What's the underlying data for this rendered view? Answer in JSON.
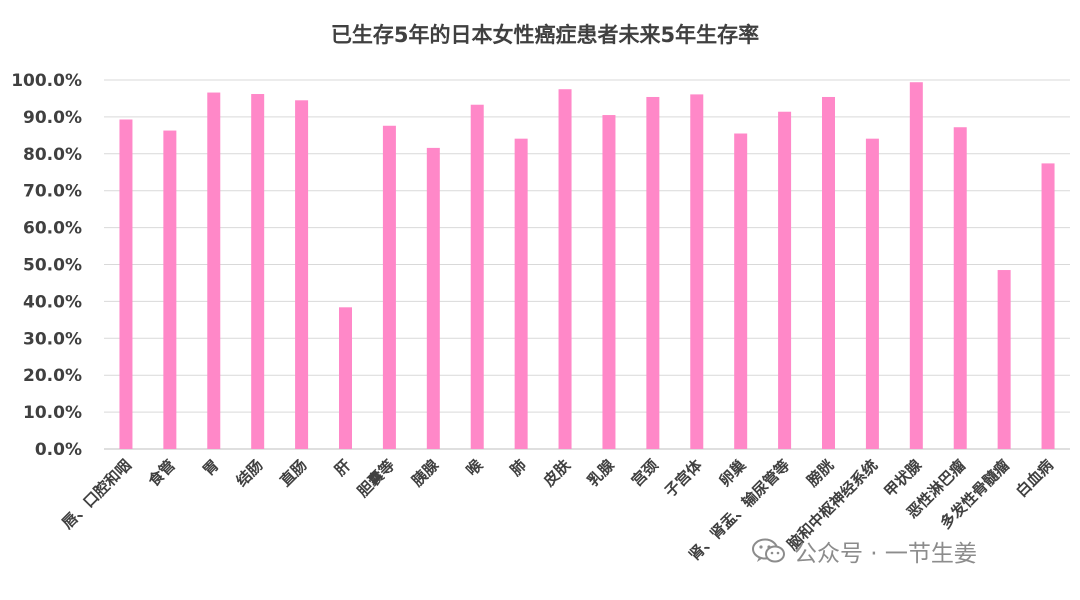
{
  "chart_data": {
    "type": "bar",
    "title": "已生存5年的日本女性癌症患者未来5年生存率",
    "categories": [
      "唇、口腔和咽",
      "食管",
      "胃",
      "结肠",
      "直肠",
      "肝",
      "胆囊等",
      "胰腺",
      "喉",
      "肺",
      "皮肤",
      "乳腺",
      "宫颈",
      "子宫体",
      "卵巢",
      "肾、肾盂、输尿管等",
      "膀胱",
      "脑和中枢神经系统",
      "甲状腺",
      "恶性淋巴瘤",
      "多发性骨髓瘤",
      "白血病"
    ],
    "values": [
      89.3,
      86.3,
      96.6,
      96.2,
      94.5,
      38.4,
      87.6,
      81.6,
      93.3,
      84.1,
      97.5,
      90.5,
      95.4,
      96.1,
      85.5,
      91.4,
      95.4,
      84.1,
      99.4,
      87.2,
      48.5,
      77.4
    ],
    "yticks": [
      "0.0%",
      "10.0%",
      "20.0%",
      "30.0%",
      "40.0%",
      "50.0%",
      "60.0%",
      "70.0%",
      "80.0%",
      "90.0%",
      "100.0%"
    ],
    "ylim": [
      0,
      100
    ],
    "ytick_step": 10,
    "grid": true,
    "legend": "none",
    "bar_color": "#ff88c8"
  },
  "watermark": {
    "icon": "wechat-icon",
    "text": "公众号 · 一节生姜"
  }
}
